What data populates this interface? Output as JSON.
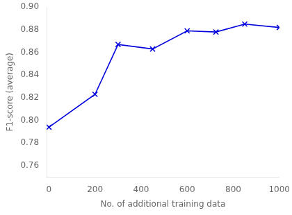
{
  "chart_data": {
    "type": "line",
    "x": [
      0,
      200,
      300,
      450,
      600,
      725,
      850,
      1000
    ],
    "series": [
      {
        "values": [
          0.794,
          0.823,
          0.867,
          0.863,
          0.879,
          0.878,
          0.885,
          0.882
        ],
        "color": "#0000dd",
        "marker": "x"
      }
    ],
    "xlabel": "No. of additional training data",
    "ylabel": "F1-score (average)",
    "xlim": [
      -10,
      1000
    ],
    "ylim": [
      0.75,
      0.9
    ],
    "xticks": [
      0,
      200,
      400,
      600,
      800,
      1000
    ],
    "yticks": [
      0.76,
      0.78,
      {
        "value": 0.8,
        "label": "0.80"
      },
      0.82,
      0.84,
      0.86,
      0.88,
      {
        "value": 0.9,
        "label": "0.90"
      }
    ],
    "grid": false
  }
}
